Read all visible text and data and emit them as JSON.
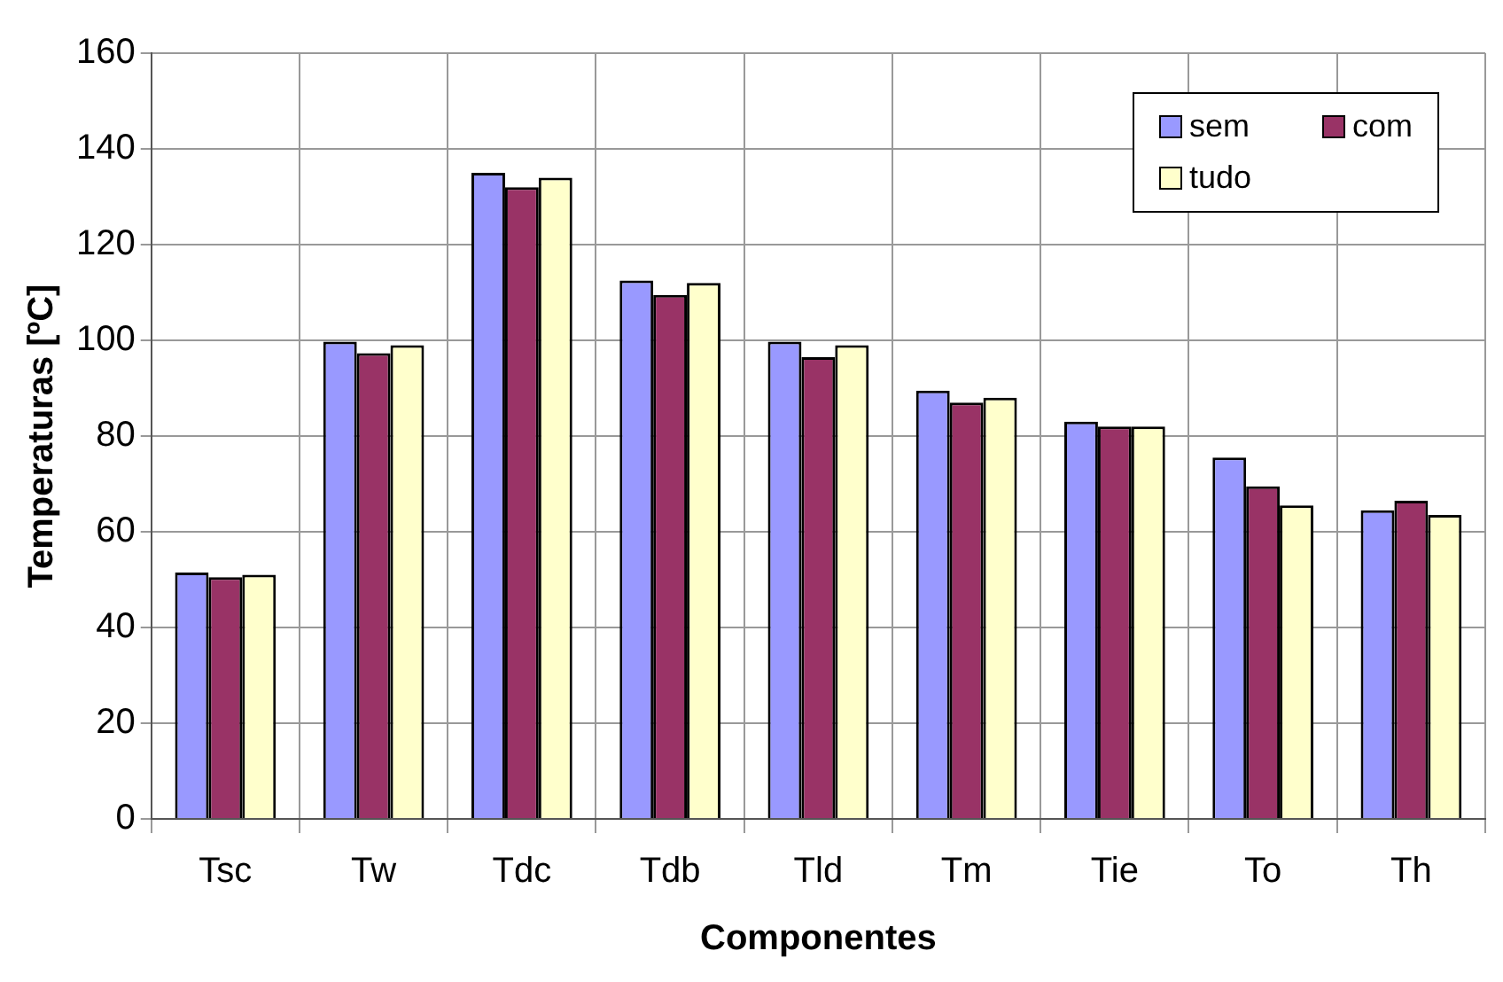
{
  "chart_data": {
    "type": "bar",
    "xlabel": "Componentes",
    "ylabel": "Temperaturas [ºC]",
    "categories": [
      "Tsc",
      "Tw",
      "Tdc",
      "Tdb",
      "Tld",
      "Tm",
      "Tie",
      "To",
      "Th"
    ],
    "series": [
      {
        "name": "sem",
        "color": "#9999ff",
        "values": [
          51.5,
          99.7,
          135,
          112.5,
          99.7,
          89.5,
          83,
          75.5,
          64.5
        ]
      },
      {
        "name": "com",
        "color": "#993366",
        "values": [
          50.5,
          97.3,
          132,
          109.5,
          96.5,
          87,
          82,
          69.5,
          66.5
        ]
      },
      {
        "name": "tudo",
        "color": "#ffffcc",
        "values": [
          51,
          99,
          134,
          112,
          99,
          88,
          82,
          65.5,
          63.5
        ]
      }
    ],
    "ylim": [
      0,
      160
    ],
    "yticks": [
      0,
      20,
      40,
      60,
      80,
      100,
      120,
      140,
      160
    ],
    "grid": true,
    "legend": "top right"
  }
}
